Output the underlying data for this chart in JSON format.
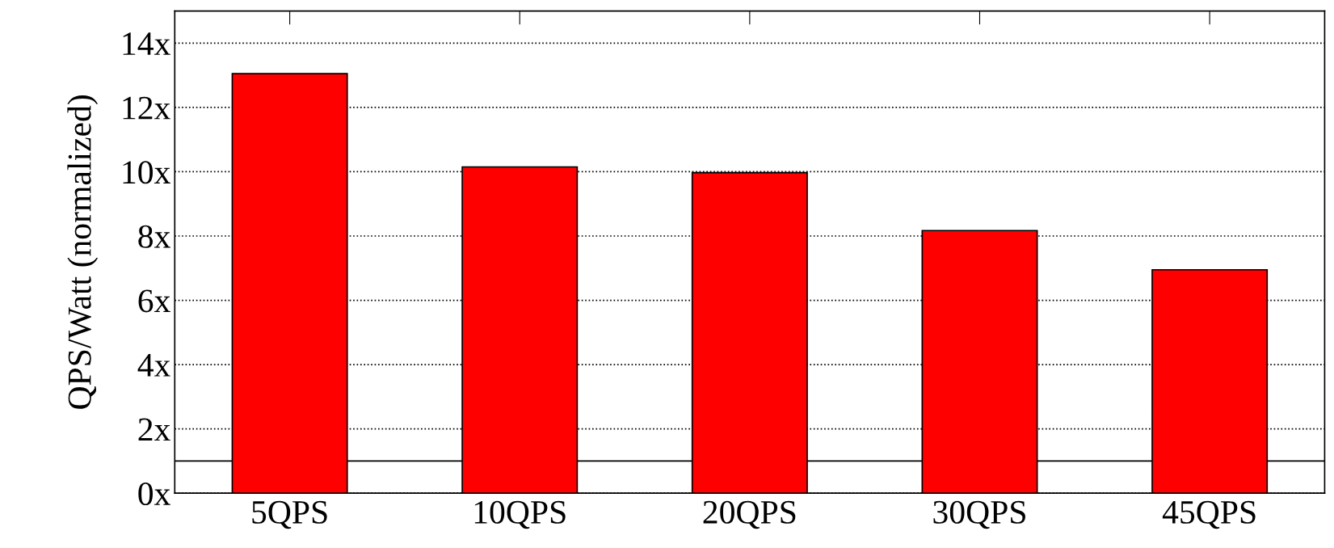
{
  "chart_data": {
    "type": "bar",
    "ylabel": "QPS/Watt (normalized)",
    "categories": [
      "5QPS",
      "10QPS",
      "20QPS",
      "30QPS",
      "45QPS"
    ],
    "values": [
      13.05,
      10.15,
      9.97,
      8.17,
      6.95
    ],
    "color": "#ff0000",
    "ylim": [
      0,
      15
    ],
    "yticks": [
      {
        "value": 0,
        "label": "0x"
      },
      {
        "value": 2,
        "label": "2x"
      },
      {
        "value": 4,
        "label": "4x"
      },
      {
        "value": 6,
        "label": "6x"
      },
      {
        "value": 8,
        "label": "8x"
      },
      {
        "value": 10,
        "label": "10x"
      },
      {
        "value": 12,
        "label": "12x"
      },
      {
        "value": 14,
        "label": "14x"
      }
    ],
    "grid": "y",
    "line_style": "dotted",
    "ref_lines": [
      {
        "axis": "y",
        "value": 1,
        "color": "#000000",
        "line_style": "solid"
      }
    ]
  }
}
